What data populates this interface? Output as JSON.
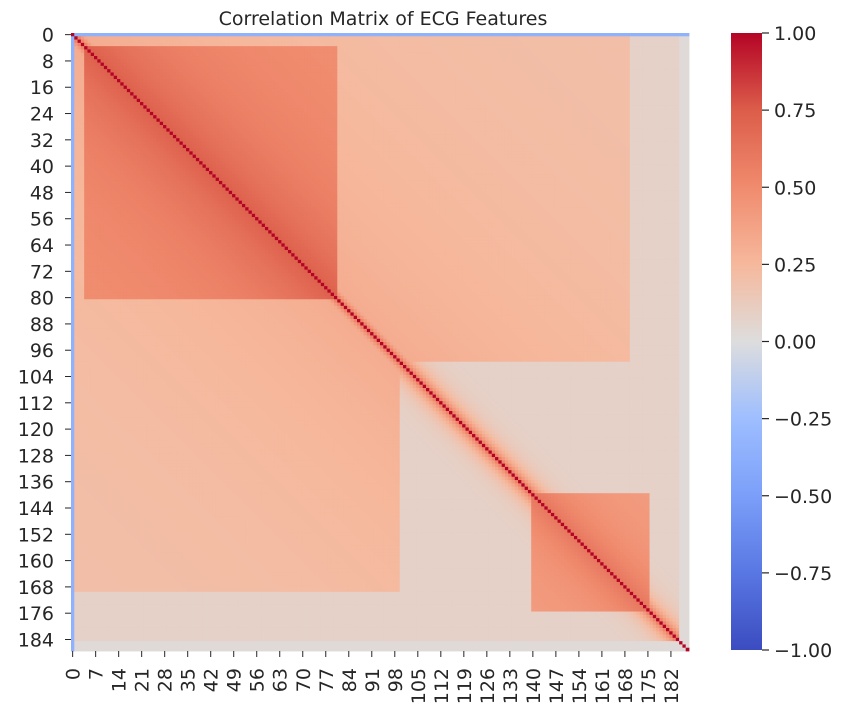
{
  "chart_data": {
    "type": "heatmap",
    "title": "Correlation Matrix of ECG Features",
    "xlabel": "",
    "ylabel": "",
    "matrix_size": 188,
    "x_tick_labels": [
      "0",
      "7",
      "14",
      "21",
      "28",
      "35",
      "42",
      "49",
      "56",
      "63",
      "70",
      "77",
      "84",
      "91",
      "98",
      "105",
      "112",
      "119",
      "126",
      "133",
      "140",
      "147",
      "154",
      "161",
      "168",
      "175",
      "182"
    ],
    "y_tick_labels": [
      "0",
      "8",
      "16",
      "24",
      "32",
      "40",
      "48",
      "56",
      "64",
      "72",
      "80",
      "88",
      "96",
      "104",
      "112",
      "120",
      "128",
      "136",
      "144",
      "152",
      "160",
      "168",
      "176",
      "184"
    ],
    "colorbar": {
      "colormap": "coolwarm",
      "vmin": -1.0,
      "vmax": 1.0,
      "tick_labels": [
        "1.00",
        "0.75",
        "0.50",
        "0.25",
        "0.00",
        "−0.25",
        "−0.50",
        "−0.75",
        "−1.00"
      ],
      "tick_values": [
        1.0,
        0.75,
        0.5,
        0.25,
        0.0,
        -0.25,
        -0.5,
        -0.75,
        -1.0
      ]
    },
    "structure": {
      "diagonal": 1.0,
      "feature_0_correlation": -0.35,
      "block_1": {
        "range": [
          4,
          80
        ],
        "peak_correlation": 0.75
      },
      "block_2": {
        "range": [
          140,
          175
        ],
        "peak_correlation": 0.6
      },
      "tail_features_from": 185,
      "tail_correlation": 0.02
    }
  }
}
